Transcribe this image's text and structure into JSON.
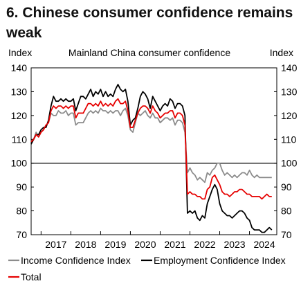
{
  "title": "6. Chinese consumer confidence remains weak",
  "chart_data": {
    "type": "line",
    "subtitle": "Mainland China consumer confidence",
    "ylabel_left": "Index",
    "ylabel_right": "Index",
    "ylim": [
      70,
      140
    ],
    "yticks": [
      70,
      80,
      90,
      100,
      110,
      120,
      130,
      140
    ],
    "xlim": [
      "2016-09",
      "2024-12"
    ],
    "xtick_labels": [
      "2017",
      "2018",
      "2019",
      "2020",
      "2021",
      "2022",
      "2023",
      "2024"
    ],
    "reference_line": 100,
    "grid": false,
    "legend_position": "bottom",
    "series": [
      {
        "name": "Income Confidence Index",
        "color": "#8c8c8c",
        "x": [
          "2016-09",
          "2016-10",
          "2016-11",
          "2016-12",
          "2017-01",
          "2017-02",
          "2017-03",
          "2017-04",
          "2017-05",
          "2017-06",
          "2017-07",
          "2017-08",
          "2017-09",
          "2017-10",
          "2017-11",
          "2017-12",
          "2018-01",
          "2018-02",
          "2018-03",
          "2018-04",
          "2018-05",
          "2018-06",
          "2018-07",
          "2018-08",
          "2018-09",
          "2018-10",
          "2018-11",
          "2018-12",
          "2019-01",
          "2019-02",
          "2019-03",
          "2019-04",
          "2019-05",
          "2019-06",
          "2019-07",
          "2019-08",
          "2019-09",
          "2019-10",
          "2019-11",
          "2019-12",
          "2020-01",
          "2020-02",
          "2020-03",
          "2020-04",
          "2020-05",
          "2020-06",
          "2020-07",
          "2020-08",
          "2020-09",
          "2020-10",
          "2020-11",
          "2020-12",
          "2021-01",
          "2021-02",
          "2021-03",
          "2021-04",
          "2021-05",
          "2021-06",
          "2021-07",
          "2021-08",
          "2021-09",
          "2021-10",
          "2021-11",
          "2021-12",
          "2022-01",
          "2022-02",
          "2022-03",
          "2022-04",
          "2022-05",
          "2022-06",
          "2022-07",
          "2022-08",
          "2022-09",
          "2022-10",
          "2022-11",
          "2022-12",
          "2023-01",
          "2023-02",
          "2023-03",
          "2023-04",
          "2023-05",
          "2023-06",
          "2023-07",
          "2023-08",
          "2023-09",
          "2023-10",
          "2023-11",
          "2023-12",
          "2024-01",
          "2024-02",
          "2024-03",
          "2024-04",
          "2024-05",
          "2024-06",
          "2024-07",
          "2024-08",
          "2024-09",
          "2024-10"
        ],
        "values": [
          109,
          110,
          113,
          111,
          113,
          114,
          116,
          117,
          121,
          120,
          120,
          122,
          121,
          121,
          122,
          120,
          121,
          121,
          116,
          117,
          117,
          117,
          119,
          121,
          122,
          121,
          122,
          121,
          123,
          122,
          122,
          121,
          122,
          121,
          122,
          122,
          120,
          122,
          123,
          120,
          114,
          113,
          117,
          121,
          120,
          121,
          122,
          120,
          119,
          121,
          119,
          119,
          117,
          118,
          119,
          119,
          118,
          119,
          116,
          118,
          118,
          117,
          113,
          96,
          98,
          96,
          95,
          93,
          94,
          93,
          92,
          96,
          95,
          97,
          98,
          100,
          100,
          97,
          95,
          96,
          95,
          94,
          95,
          94,
          95,
          96,
          96,
          95,
          97,
          95,
          94,
          95,
          94,
          94,
          94,
          94,
          94,
          94
        ]
      },
      {
        "name": "Employment Confidence Index",
        "color": "#000000",
        "x": [
          "2016-09",
          "2016-10",
          "2016-11",
          "2016-12",
          "2017-01",
          "2017-02",
          "2017-03",
          "2017-04",
          "2017-05",
          "2017-06",
          "2017-07",
          "2017-08",
          "2017-09",
          "2017-10",
          "2017-11",
          "2017-12",
          "2018-01",
          "2018-02",
          "2018-03",
          "2018-04",
          "2018-05",
          "2018-06",
          "2018-07",
          "2018-08",
          "2018-09",
          "2018-10",
          "2018-11",
          "2018-12",
          "2019-01",
          "2019-02",
          "2019-03",
          "2019-04",
          "2019-05",
          "2019-06",
          "2019-07",
          "2019-08",
          "2019-09",
          "2019-10",
          "2019-11",
          "2019-12",
          "2020-01",
          "2020-02",
          "2020-03",
          "2020-04",
          "2020-05",
          "2020-06",
          "2020-07",
          "2020-08",
          "2020-09",
          "2020-10",
          "2020-11",
          "2020-12",
          "2021-01",
          "2021-02",
          "2021-03",
          "2021-04",
          "2021-05",
          "2021-06",
          "2021-07",
          "2021-08",
          "2021-09",
          "2021-10",
          "2021-11",
          "2021-12",
          "2022-01",
          "2022-02",
          "2022-03",
          "2022-04",
          "2022-05",
          "2022-06",
          "2022-07",
          "2022-08",
          "2022-09",
          "2022-10",
          "2022-11",
          "2022-12",
          "2023-01",
          "2023-02",
          "2023-03",
          "2023-04",
          "2023-05",
          "2023-06",
          "2023-07",
          "2023-08",
          "2023-09",
          "2023-10",
          "2023-11",
          "2023-12",
          "2024-01",
          "2024-02",
          "2024-03",
          "2024-04",
          "2024-05",
          "2024-06",
          "2024-07",
          "2024-08",
          "2024-09",
          "2024-10"
        ],
        "values": [
          108,
          110,
          112,
          112,
          114,
          115,
          115,
          118,
          124,
          128,
          126,
          126,
          127,
          126,
          127,
          126,
          126,
          127,
          122,
          125,
          128,
          128,
          127,
          129,
          131,
          128,
          130,
          129,
          131,
          128,
          130,
          128,
          129,
          128,
          131,
          133,
          131,
          130,
          131,
          126,
          116,
          118,
          119,
          123,
          128,
          130,
          129,
          127,
          123,
          128,
          126,
          124,
          122,
          124,
          125,
          124,
          127,
          126,
          123,
          125,
          125,
          124,
          120,
          79,
          80,
          79,
          80,
          77,
          76,
          78,
          77,
          83,
          86,
          89,
          91,
          89,
          83,
          80,
          79,
          78,
          78,
          77,
          78,
          79,
          80,
          80,
          79,
          77,
          76,
          73,
          72,
          72,
          72,
          71,
          71,
          72,
          73,
          72
        ]
      },
      {
        "name": "Total",
        "color": "#e60000",
        "x": [
          "2016-09",
          "2016-10",
          "2016-11",
          "2016-12",
          "2017-01",
          "2017-02",
          "2017-03",
          "2017-04",
          "2017-05",
          "2017-06",
          "2017-07",
          "2017-08",
          "2017-09",
          "2017-10",
          "2017-11",
          "2017-12",
          "2018-01",
          "2018-02",
          "2018-03",
          "2018-04",
          "2018-05",
          "2018-06",
          "2018-07",
          "2018-08",
          "2018-09",
          "2018-10",
          "2018-11",
          "2018-12",
          "2019-01",
          "2019-02",
          "2019-03",
          "2019-04",
          "2019-05",
          "2019-06",
          "2019-07",
          "2019-08",
          "2019-09",
          "2019-10",
          "2019-11",
          "2019-12",
          "2020-01",
          "2020-02",
          "2020-03",
          "2020-04",
          "2020-05",
          "2020-06",
          "2020-07",
          "2020-08",
          "2020-09",
          "2020-10",
          "2020-11",
          "2020-12",
          "2021-01",
          "2021-02",
          "2021-03",
          "2021-04",
          "2021-05",
          "2021-06",
          "2021-07",
          "2021-08",
          "2021-09",
          "2021-10",
          "2021-11",
          "2021-12",
          "2022-01",
          "2022-02",
          "2022-03",
          "2022-04",
          "2022-05",
          "2022-06",
          "2022-07",
          "2022-08",
          "2022-09",
          "2022-10",
          "2022-11",
          "2022-12",
          "2023-01",
          "2023-02",
          "2023-03",
          "2023-04",
          "2023-05",
          "2023-06",
          "2023-07",
          "2023-08",
          "2023-09",
          "2023-10",
          "2023-11",
          "2023-12",
          "2024-01",
          "2024-02",
          "2024-03",
          "2024-04",
          "2024-05",
          "2024-06",
          "2024-07",
          "2024-08",
          "2024-09",
          "2024-10"
        ],
        "values": [
          109,
          110,
          112,
          111,
          113,
          114,
          116,
          117,
          122,
          124,
          123,
          124,
          124,
          123,
          124,
          123,
          124,
          124,
          119,
          121,
          121,
          121,
          123,
          125,
          125,
          124,
          125,
          124,
          126,
          124,
          125,
          124,
          125,
          124,
          126,
          127,
          125,
          125,
          126,
          122,
          115,
          115,
          118,
          121,
          123,
          124,
          124,
          123,
          121,
          124,
          122,
          121,
          119,
          120,
          121,
          121,
          122,
          122,
          119,
          121,
          121,
          120,
          116,
          87,
          88,
          87,
          87,
          86,
          86,
          85,
          85,
          89,
          90,
          94,
          95,
          93,
          91,
          88,
          87,
          87,
          86,
          87,
          88,
          88,
          89,
          89,
          88,
          87,
          87,
          86,
          86,
          86,
          86,
          85,
          86,
          87,
          86,
          86
        ]
      }
    ]
  }
}
